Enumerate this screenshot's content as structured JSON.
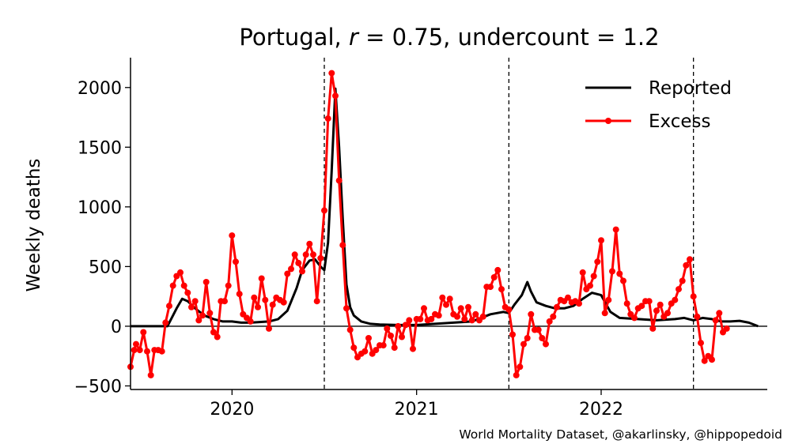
{
  "chart_data": {
    "type": "line",
    "title": "Portugal, r = 0.75, undercount = 1.2",
    "title_parts": {
      "prefix": "Portugal, ",
      "r_symbol": "r",
      "r_value": " = 0.75, undercount = 1.2"
    },
    "xlabel": "",
    "ylabel": "Weekly deaths",
    "xlim": [
      2019.45,
      2022.9
    ],
    "ylim": [
      -530,
      2250
    ],
    "x_ticks": [
      {
        "value": 2020,
        "label": "2020"
      },
      {
        "value": 2021,
        "label": "2021"
      },
      {
        "value": 2022,
        "label": "2022"
      }
    ],
    "y_ticks": [
      {
        "value": -500,
        "label": "−500"
      },
      {
        "value": 0,
        "label": "0"
      },
      {
        "value": 500,
        "label": "500"
      },
      {
        "value": 1000,
        "label": "1000"
      },
      {
        "value": 1500,
        "label": "1500"
      },
      {
        "value": 2000,
        "label": "2000"
      }
    ],
    "reference_lines": {
      "horizontal_zero": 0,
      "vertical_dashed": [
        2020.5,
        2021.5,
        2022.5
      ]
    },
    "legend": {
      "position": "top-right",
      "entries": [
        {
          "label": "Reported",
          "color": "#000000",
          "marker": "none"
        },
        {
          "label": "Excess",
          "color": "#ff0000",
          "marker": "circle"
        }
      ]
    },
    "series": [
      {
        "name": "Reported",
        "color": "#000000",
        "marker": "none",
        "x": [
          2019.45,
          2019.65,
          2019.7,
          2019.73,
          2019.76,
          2019.8,
          2019.85,
          2019.9,
          2019.95,
          2020.0,
          2020.05,
          2020.1,
          2020.2,
          2020.25,
          2020.3,
          2020.35,
          2020.38,
          2020.42,
          2020.45,
          2020.48,
          2020.5,
          2020.52,
          2020.54,
          2020.56,
          2020.58,
          2020.6,
          2020.62,
          2020.64,
          2020.66,
          2020.7,
          2020.75,
          2020.8,
          2020.9,
          2021.0,
          2021.1,
          2021.2,
          2021.3,
          2021.4,
          2021.47,
          2021.5,
          2021.53,
          2021.57,
          2021.6,
          2021.62,
          2021.65,
          2021.7,
          2021.75,
          2021.8,
          2021.85,
          2021.9,
          2021.95,
          2022.0,
          2022.05,
          2022.1,
          2022.2,
          2022.3,
          2022.4,
          2022.45,
          2022.5,
          2022.55,
          2022.6,
          2022.65,
          2022.7,
          2022.75,
          2022.8,
          2022.85
        ],
        "values": [
          0,
          0,
          150,
          230,
          210,
          150,
          90,
          60,
          40,
          40,
          30,
          30,
          40,
          60,
          130,
          320,
          470,
          550,
          560,
          500,
          470,
          700,
          1300,
          1990,
          1500,
          900,
          350,
          160,
          90,
          40,
          20,
          15,
          10,
          10,
          20,
          30,
          40,
          100,
          120,
          110,
          180,
          260,
          370,
          290,
          200,
          170,
          150,
          150,
          170,
          230,
          280,
          260,
          120,
          70,
          60,
          50,
          60,
          70,
          50,
          70,
          60,
          40,
          40,
          45,
          30,
          0
        ]
      },
      {
        "name": "Excess",
        "color": "#ff0000",
        "marker": "circle",
        "x": [
          2019.45,
          2019.47,
          2019.48,
          2019.5,
          2019.52,
          2019.54,
          2019.56,
          2019.58,
          2019.6,
          2019.62,
          2019.64,
          2019.66,
          2019.68,
          2019.7,
          2019.72,
          2019.74,
          2019.76,
          2019.78,
          2019.8,
          2019.82,
          2019.84,
          2019.86,
          2019.88,
          2019.9,
          2019.92,
          2019.94,
          2019.96,
          2019.98,
          2020.0,
          2020.02,
          2020.04,
          2020.06,
          2020.08,
          2020.1,
          2020.12,
          2020.14,
          2020.16,
          2020.18,
          2020.2,
          2020.22,
          2020.24,
          2020.26,
          2020.28,
          2020.3,
          2020.32,
          2020.34,
          2020.36,
          2020.38,
          2020.4,
          2020.42,
          2020.44,
          2020.46,
          2020.48,
          2020.5,
          2020.52,
          2020.54,
          2020.56,
          2020.58,
          2020.6,
          2020.62,
          2020.64,
          2020.66,
          2020.68,
          2020.7,
          2020.72,
          2020.74,
          2020.76,
          2020.78,
          2020.8,
          2020.82,
          2020.84,
          2020.86,
          2020.88,
          2020.9,
          2020.92,
          2020.94,
          2020.96,
          2020.98,
          2021.0,
          2021.02,
          2021.04,
          2021.06,
          2021.08,
          2021.1,
          2021.12,
          2021.14,
          2021.16,
          2021.18,
          2021.2,
          2021.22,
          2021.24,
          2021.26,
          2021.28,
          2021.3,
          2021.32,
          2021.34,
          2021.36,
          2021.38,
          2021.4,
          2021.42,
          2021.44,
          2021.46,
          2021.48,
          2021.5,
          2021.52,
          2021.54,
          2021.56,
          2021.58,
          2021.6,
          2021.62,
          2021.64,
          2021.66,
          2021.68,
          2021.7,
          2021.72,
          2021.74,
          2021.76,
          2021.78,
          2021.8,
          2021.82,
          2021.84,
          2021.86,
          2021.88,
          2021.9,
          2021.92,
          2021.94,
          2021.96,
          2021.98,
          2022.0,
          2022.02,
          2022.04,
          2022.06,
          2022.08,
          2022.1,
          2022.12,
          2022.14,
          2022.16,
          2022.18,
          2022.2,
          2022.22,
          2022.24,
          2022.26,
          2022.28,
          2022.3,
          2022.32,
          2022.34,
          2022.36,
          2022.38,
          2022.4,
          2022.42,
          2022.44,
          2022.46,
          2022.48,
          2022.5,
          2022.52,
          2022.54,
          2022.56,
          2022.58,
          2022.6,
          2022.62,
          2022.64,
          2022.66,
          2022.68
        ],
        "values": [
          -340,
          -200,
          -150,
          -200,
          -50,
          -210,
          -410,
          -200,
          -200,
          -210,
          30,
          170,
          340,
          420,
          450,
          340,
          280,
          160,
          210,
          50,
          90,
          370,
          110,
          -50,
          -90,
          210,
          210,
          340,
          760,
          540,
          270,
          100,
          70,
          40,
          240,
          160,
          400,
          220,
          -20,
          180,
          240,
          220,
          200,
          440,
          480,
          600,
          530,
          460,
          600,
          690,
          600,
          210,
          570,
          970,
          1740,
          2120,
          1930,
          1220,
          680,
          150,
          -30,
          -180,
          -260,
          -230,
          -210,
          -100,
          -230,
          -200,
          -160,
          -160,
          -20,
          -80,
          -180,
          0,
          -90,
          10,
          50,
          -190,
          60,
          60,
          150,
          50,
          60,
          100,
          90,
          240,
          180,
          230,
          100,
          80,
          150,
          60,
          160,
          50,
          100,
          50,
          80,
          330,
          330,
          410,
          470,
          310,
          160,
          140,
          -70,
          -410,
          -340,
          -150,
          -100,
          100,
          -30,
          -30,
          -100,
          -150,
          40,
          80,
          160,
          220,
          210,
          240,
          200,
          210,
          190,
          450,
          310,
          340,
          420,
          540,
          720,
          110,
          220,
          460,
          810,
          440,
          380,
          190,
          100,
          70,
          150,
          170,
          210,
          210,
          -20,
          130,
          180,
          80,
          110,
          190,
          220,
          310,
          380,
          510,
          560,
          250,
          80,
          -140,
          -290,
          -250,
          -280,
          50,
          110,
          -50,
          -20
        ]
      }
    ]
  },
  "credit": "World Mortality Dataset, @akarlinsky, @hippopedoid"
}
